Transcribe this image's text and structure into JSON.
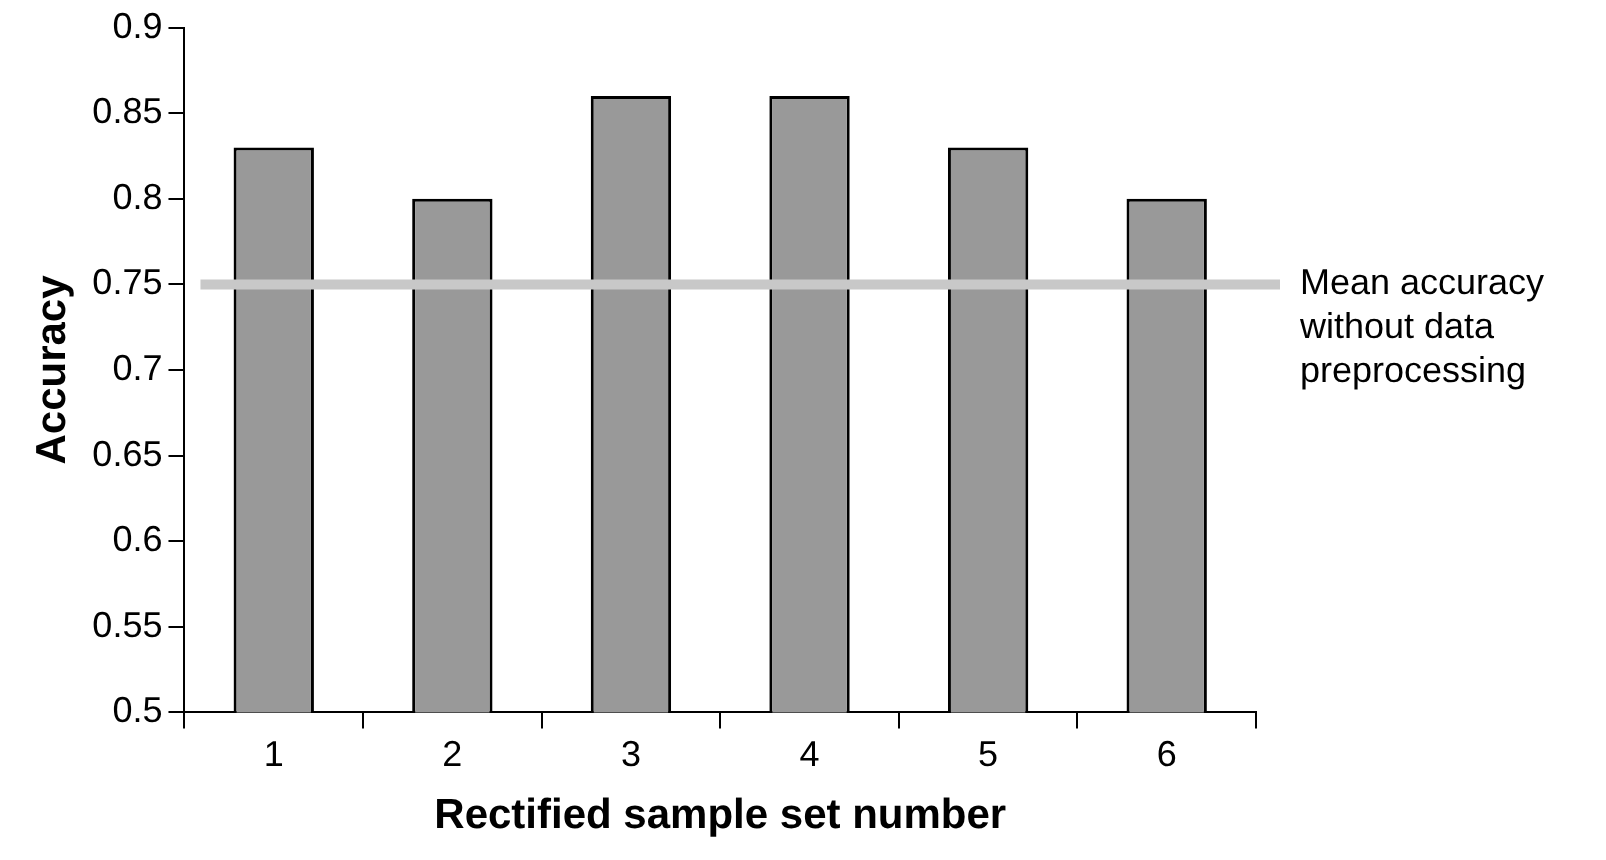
{
  "chart_data": {
    "type": "bar",
    "xlabel": "Rectified sample set number",
    "ylabel": "Accuracy",
    "categories": [
      "1",
      "2",
      "3",
      "4",
      "5",
      "6"
    ],
    "values": [
      0.83,
      0.8,
      0.86,
      0.86,
      0.83,
      0.8
    ],
    "color": "#999999",
    "ylim": [
      0.5,
      0.9
    ],
    "yticks": [
      0.5,
      0.55,
      0.6,
      0.65,
      0.7,
      0.75,
      0.8,
      0.85,
      0.9
    ],
    "ref_lines": [
      {
        "axis": "y",
        "value": 0.75,
        "label": "Mean accuracy without data preprocessing",
        "color": "#c8c8c8"
      }
    ],
    "grid": false,
    "legend": false
  }
}
